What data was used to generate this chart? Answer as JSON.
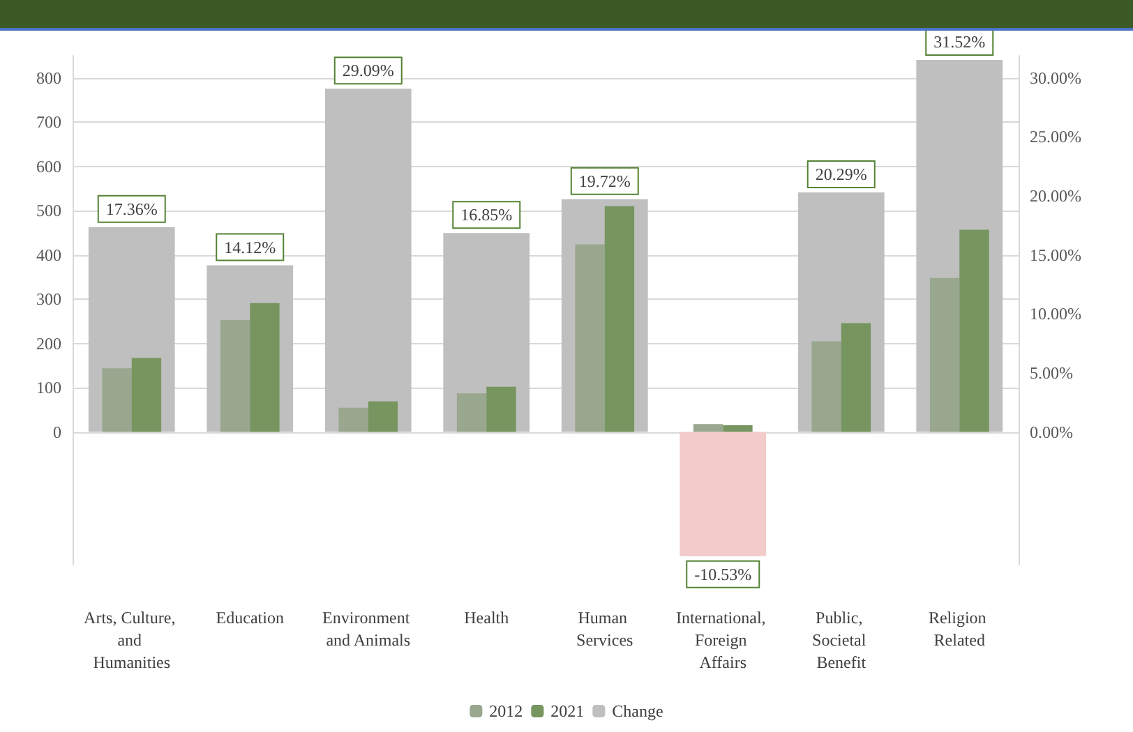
{
  "chart_data": {
    "type": "bar",
    "categories": [
      "Arts, Culture, and Humanities",
      "Education",
      "Environment and Animals",
      "Health",
      "Human Services",
      "International, Foreign Affairs",
      "Public, Societal Benefit",
      "Religion Related"
    ],
    "series": [
      {
        "name": "Change",
        "type": "bar",
        "axis": "y2",
        "color": "#bfbfbf",
        "colors": [
          "#bfbfbf",
          "#bfbfbf",
          "#bfbfbf",
          "#bfbfbf",
          "#bfbfbf",
          "#f2cbcb",
          "#bfbfbf",
          "#bfbfbf"
        ],
        "values": [
          17.36,
          14.12,
          29.09,
          16.85,
          19.72,
          -10.53,
          20.29,
          31.52
        ],
        "value_labels": [
          "17.36%",
          "14.12%",
          "29.09%",
          "16.85%",
          "19.72%",
          "-10.53%",
          "20.29%",
          "31.52%"
        ]
      },
      {
        "name": "2012",
        "color": "#99a78f",
        "values": [
          144,
          253,
          55,
          87,
          424,
          18,
          205,
          348
        ]
      },
      {
        "name": "2021",
        "color": "#76955f",
        "values": [
          167,
          291,
          69,
          102,
          510,
          15,
          246,
          457
        ]
      }
    ],
    "ylim": [
      -300,
      850
    ],
    "yticks": [
      0,
      100,
      200,
      300,
      400,
      500,
      600,
      700,
      800
    ],
    "y2lim": [
      -11.25,
      31.875
    ],
    "y2ticks": [
      {
        "value": 0,
        "label": "0.00%"
      },
      {
        "value": 5,
        "label": "5.00%"
      },
      {
        "value": 10,
        "label": "10.00%"
      },
      {
        "value": 15,
        "label": "15.00%"
      },
      {
        "value": 20,
        "label": "20.00%"
      },
      {
        "value": 25,
        "label": "25.00%"
      },
      {
        "value": 30,
        "label": "30.00%"
      }
    ],
    "grid": "y",
    "legend": "bottom"
  }
}
